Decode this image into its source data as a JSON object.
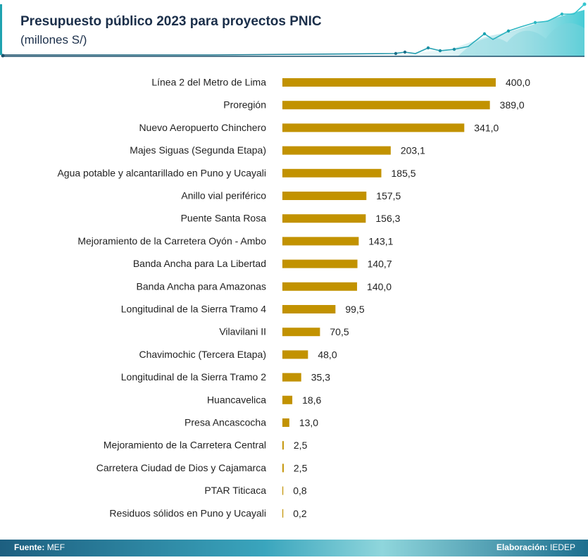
{
  "header": {
    "title": "Presupuesto público 2023 para proyectos PNIC",
    "subtitle": "(millones S/)"
  },
  "footer": {
    "source_label": "Fuente:",
    "source_value": "MEF",
    "credit_label": "Elaboración:",
    "credit_value": "IEDEP"
  },
  "colors": {
    "bar": "#c29200",
    "title": "#1b2f4a",
    "accent": "#1fa3b0",
    "footer": "#1f6e8c"
  },
  "chart_data": {
    "type": "bar",
    "orientation": "horizontal",
    "title": "Presupuesto público 2023 para proyectos PNIC",
    "subtitle": "(millones S/)",
    "xlim": [
      0,
      400
    ],
    "categories": [
      "Línea 2 del Metro de Lima",
      "Proregión",
      "Nuevo Aeropuerto Chinchero",
      "Majes Siguas (Segunda Etapa)",
      "Agua potable y alcantarillado en Puno y Ucayali",
      "Anillo vial periférico",
      "Puente Santa Rosa",
      "Mejoramiento de la Carretera Oyón - Ambo",
      "Banda Ancha para La Libertad",
      "Banda Ancha para Amazonas",
      "Longitudinal de la Sierra Tramo 4",
      "Vilavilani II",
      "Chavimochic (Tercera Etapa)",
      "Longitudinal de la Sierra Tramo 2",
      "Huancavelica",
      "Presa Ancascocha",
      "Mejoramiento de la Carretera Central",
      "Carretera Ciudad de Dios y Cajamarca",
      "PTAR Titicaca",
      "Residuos sólidos en Puno y Ucayali"
    ],
    "values": [
      400.0,
      389.0,
      341.0,
      203.1,
      185.5,
      157.5,
      156.3,
      143.1,
      140.7,
      140.0,
      99.5,
      70.5,
      48.0,
      35.3,
      18.6,
      13.0,
      2.5,
      2.5,
      0.8,
      0.2
    ],
    "value_labels": [
      "400,0",
      "389,0",
      "341,0",
      "203,1",
      "185,5",
      "157,5",
      "156,3",
      "143,1",
      "140,7",
      "140,0",
      "99,5",
      "70,5",
      "48,0",
      "35,3",
      "18,6",
      "13,0",
      "2,5",
      "2,5",
      "0,8",
      "0,2"
    ]
  }
}
